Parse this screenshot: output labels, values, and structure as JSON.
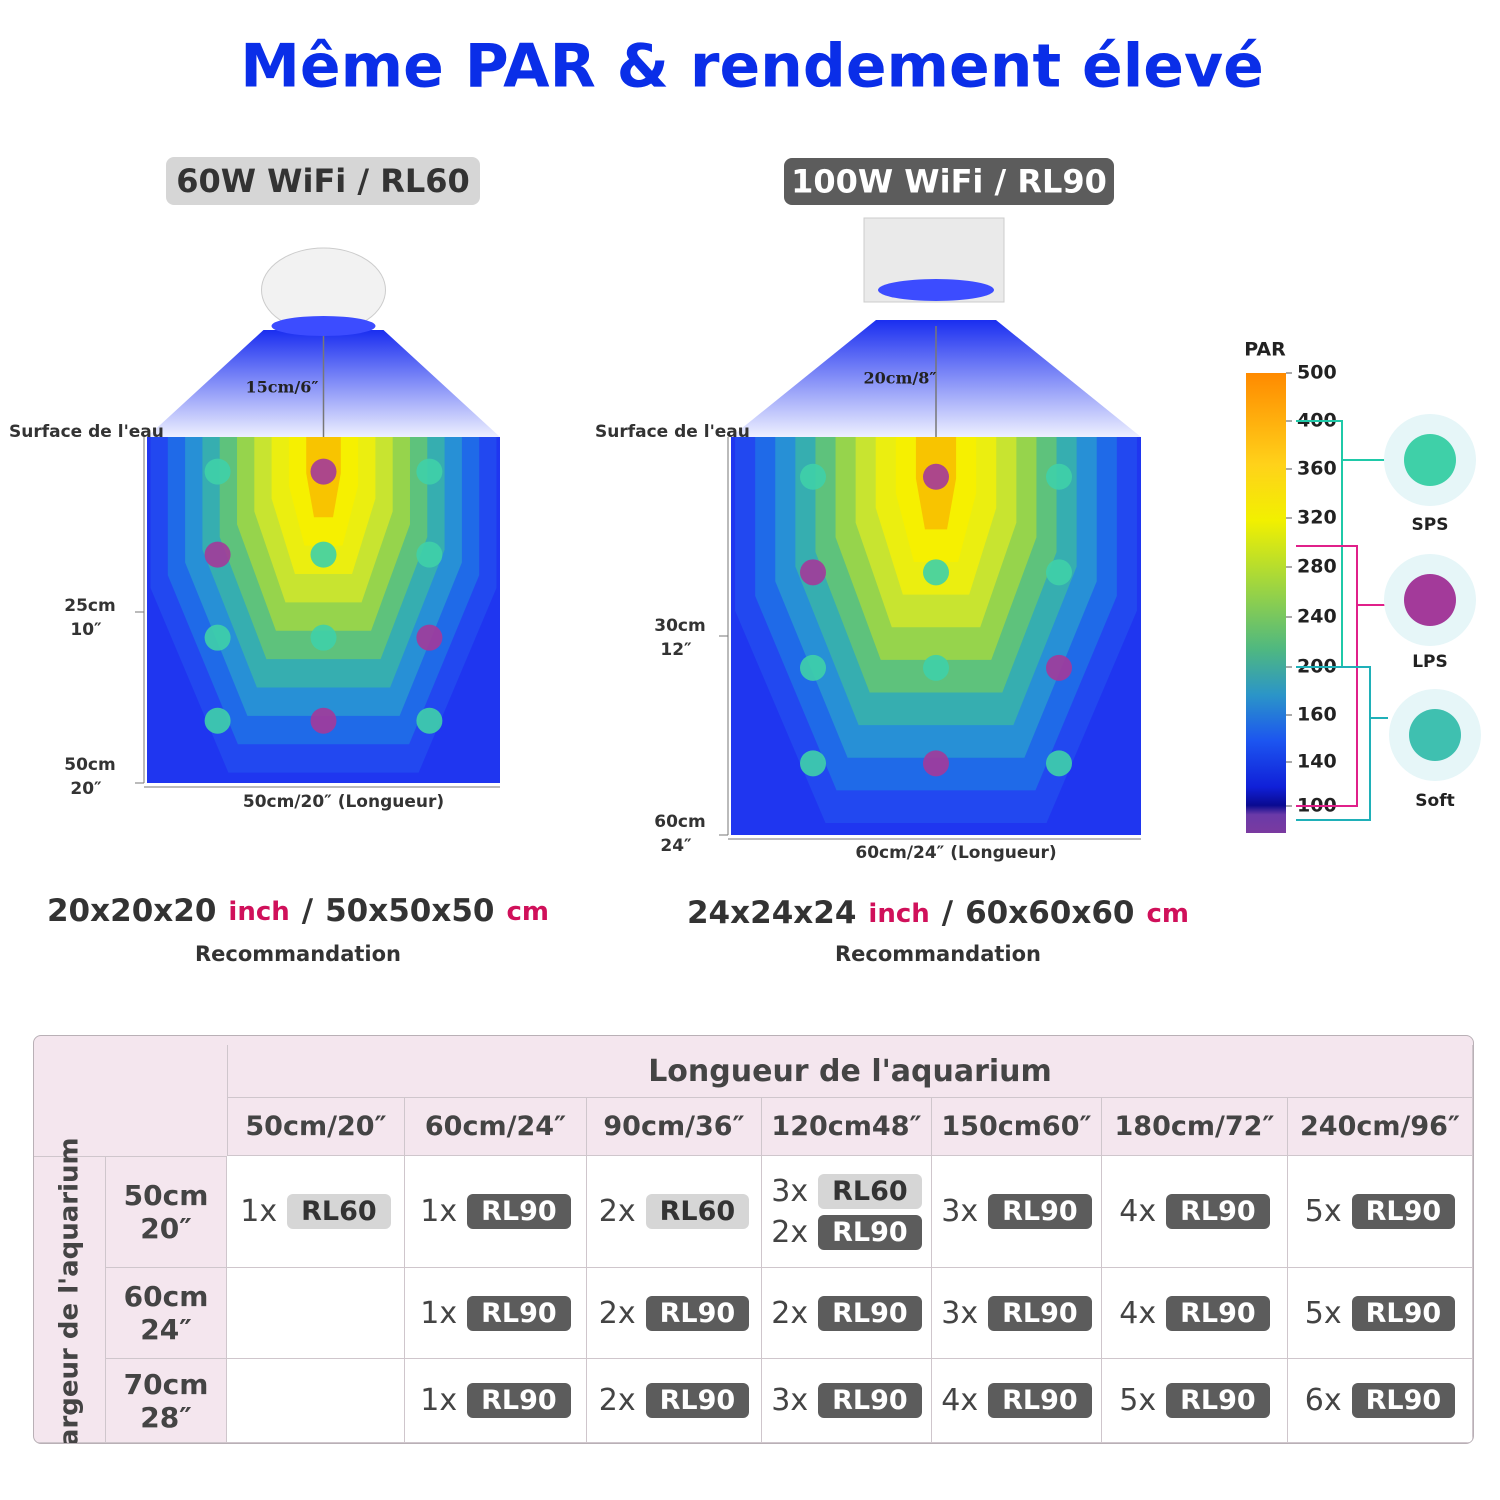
{
  "title": "Même PAR & rendement élevé",
  "panels": [
    {
      "label": "60W WiFi / RL60",
      "height_label": "15cm/6″",
      "surface": "Surface de l'eau",
      "depth_marks": [
        {
          "cm": "25cm",
          "in": "10″"
        },
        {
          "cm": "50cm",
          "in": "20″"
        }
      ],
      "length_label": "50cm/20″  (Longueur)",
      "size_inch": "20x20x20",
      "inch_unit": "inch",
      "separator": "/",
      "size_cm": "50x50x50",
      "cm_unit": "cm",
      "caption": "Recommandation"
    },
    {
      "label": "100W WiFi / RL90",
      "height_label": "20cm/8″",
      "surface": "Surface de l'eau",
      "depth_marks": [
        {
          "cm": "30cm",
          "in": "12″"
        },
        {
          "cm": "60cm",
          "in": "24″"
        }
      ],
      "length_label": "60cm/24″  (Longueur)",
      "size_inch": "24x24x24",
      "inch_unit": "inch",
      "separator": "/",
      "size_cm": "60x60x60",
      "cm_unit": "cm",
      "caption": "Recommandation"
    }
  ],
  "par_scale": {
    "title": "PAR",
    "ticks": [
      500,
      400,
      360,
      320,
      280,
      240,
      200,
      160,
      140,
      100
    ],
    "corals": [
      "SPS",
      "LPS",
      "Soft"
    ]
  },
  "table": {
    "column_header": "Longueur de l'aquarium",
    "row_header": "Largeur de l'aquarium",
    "badge_colors": {
      "RL60": "#d6d6d6",
      "RL90": "#5c5c5c"
    },
    "columns": [
      "50cm/20″",
      "60cm/24″",
      "90cm/36″",
      "120cm48″",
      "150cm60″",
      "180cm/72″",
      "240cm/96″"
    ],
    "rows": [
      {
        "label": [
          "50cm",
          "20″"
        ],
        "cells": [
          [
            {
              "count": "1x",
              "model": "RL60"
            }
          ],
          [
            {
              "count": "1x",
              "model": "RL90"
            }
          ],
          [
            {
              "count": "2x",
              "model": "RL60"
            }
          ],
          [
            {
              "count": "3x",
              "model": "RL60"
            },
            {
              "count": "2x",
              "model": "RL90"
            }
          ],
          [
            {
              "count": "3x",
              "model": "RL90"
            }
          ],
          [
            {
              "count": "4x",
              "model": "RL90"
            }
          ],
          [
            {
              "count": "5x",
              "model": "RL90"
            }
          ]
        ]
      },
      {
        "label": [
          "60cm",
          "24″"
        ],
        "cells": [
          [],
          [
            {
              "count": "1x",
              "model": "RL90"
            }
          ],
          [
            {
              "count": "2x",
              "model": "RL90"
            }
          ],
          [
            {
              "count": "2x",
              "model": "RL90"
            }
          ],
          [
            {
              "count": "3x",
              "model": "RL90"
            }
          ],
          [
            {
              "count": "4x",
              "model": "RL90"
            }
          ],
          [
            {
              "count": "5x",
              "model": "RL90"
            }
          ]
        ]
      },
      {
        "label": [
          "70cm",
          "28″"
        ],
        "cells": [
          [],
          [
            {
              "count": "1x",
              "model": "RL90"
            }
          ],
          [
            {
              "count": "2x",
              "model": "RL90"
            }
          ],
          [
            {
              "count": "3x",
              "model": "RL90"
            }
          ],
          [
            {
              "count": "4x",
              "model": "RL90"
            }
          ],
          [
            {
              "count": "5x",
              "model": "RL90"
            }
          ],
          [
            {
              "count": "6x",
              "model": "RL90"
            }
          ]
        ]
      }
    ]
  }
}
